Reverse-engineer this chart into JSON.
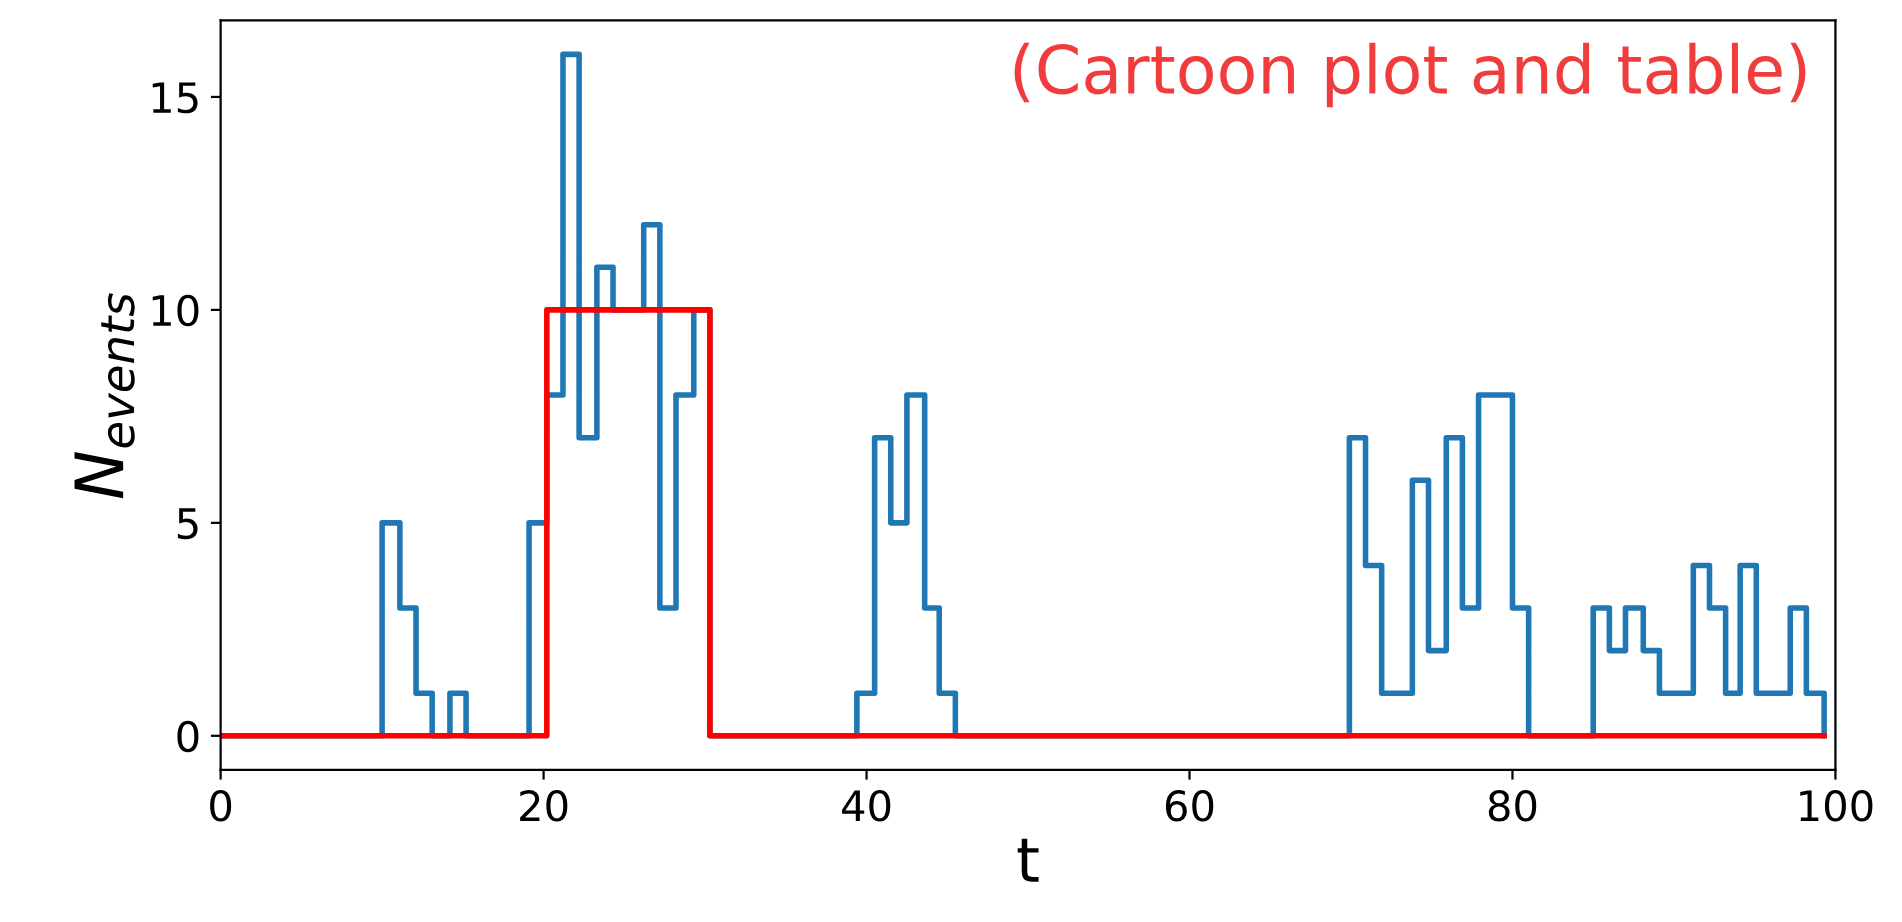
{
  "chart_data": {
    "type": "step",
    "xlabel": "t",
    "ylabel": "N$_{events}$",
    "annotations": [
      "(Cartoon plot and table)"
    ],
    "xlim": [
      0,
      100
    ],
    "xticks": [
      0,
      20,
      40,
      60,
      80,
      100
    ],
    "ylim": [
      -0.8,
      16.8
    ],
    "yticks": [
      0,
      5,
      10,
      15
    ],
    "grid": false,
    "legend": false,
    "series": [
      {
        "color": "#1f77b4",
        "x": [
          0,
          10.0,
          11.1,
          12.1,
          13.1,
          14.2,
          15.2,
          19.1,
          20.2,
          21.2,
          22.2,
          23.3,
          24.3,
          26.2,
          27.2,
          28.2,
          29.3,
          30.3,
          39.4,
          40.5,
          41.5,
          42.5,
          43.6,
          44.5,
          45.5,
          69.9,
          70.9,
          71.9,
          73.8,
          74.8,
          75.9,
          76.9,
          77.9,
          80.0,
          81.0,
          85.0,
          86.0,
          87.0,
          88.1,
          89.1,
          91.2,
          92.2,
          93.2,
          94.1,
          95.1,
          97.2,
          98.2,
          99.3
        ],
        "values": [
          0,
          5,
          3,
          1,
          0,
          1,
          0,
          5,
          8,
          16,
          7,
          11,
          10,
          12,
          3,
          8,
          10,
          0,
          1,
          7,
          5,
          8,
          3,
          1,
          0,
          7,
          4,
          1,
          6,
          2,
          7,
          3,
          8,
          3,
          0,
          3,
          2,
          3,
          2,
          1,
          4,
          3,
          1,
          4,
          1,
          3,
          1,
          0
        ]
      },
      {
        "color": "#ff0000",
        "x": [
          0,
          20.2,
          30.3,
          99.3
        ],
        "values": [
          0,
          10,
          0,
          0
        ]
      }
    ]
  }
}
